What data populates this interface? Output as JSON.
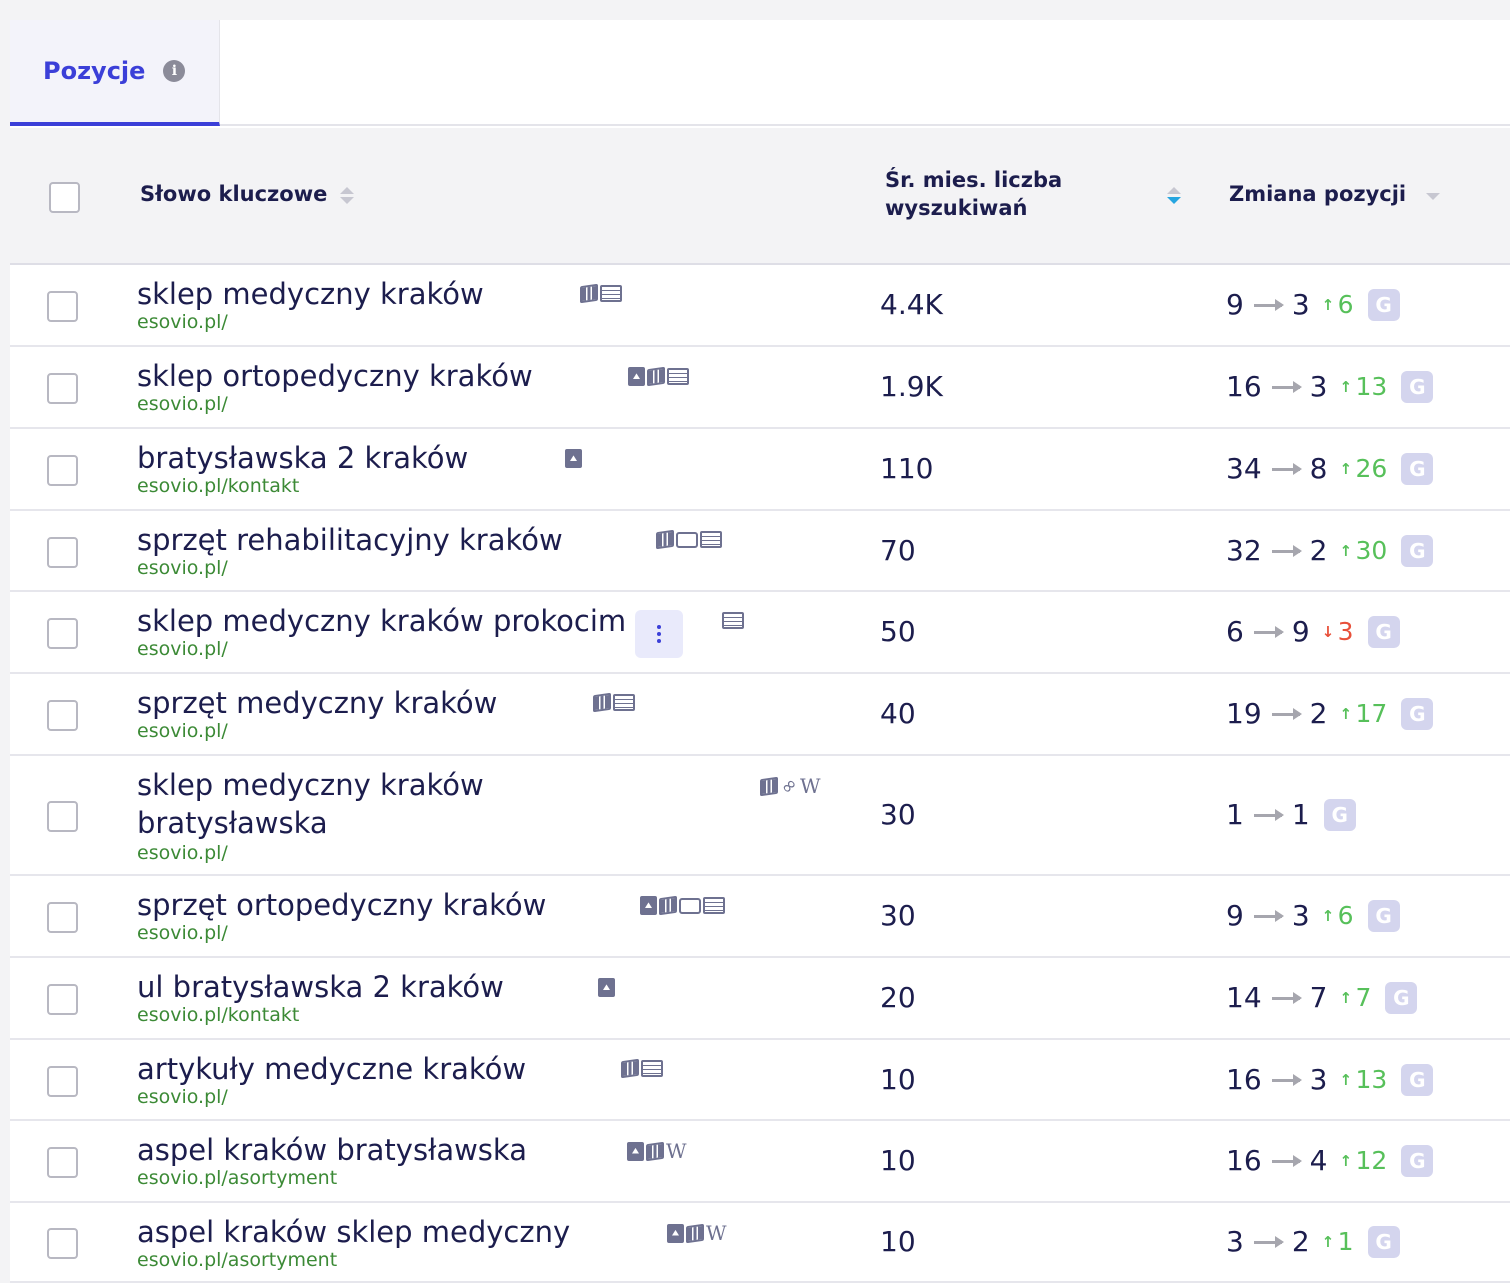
{
  "tabs": [
    {
      "label": "Pozycje",
      "info_icon": "info-icon",
      "active": true
    }
  ],
  "columns": {
    "keyword": "Słowo kluczowe",
    "volume_line1": "Śr. mies. liczba",
    "volume_line2": "wyszukiwań",
    "change": "Zmiana pozycji"
  },
  "colors": {
    "accent": "#3b3fd8",
    "url": "#3c8a36",
    "up": "#57c05a",
    "down": "#e8503a",
    "sort_active": "#26a5e0"
  },
  "rows": [
    {
      "keyword": "sklep medyczny kraków",
      "url": "esovio.pl/",
      "icons": [
        "map-icon",
        "book-icon"
      ],
      "volume": "4.4K",
      "from": "9",
      "to": "3",
      "dir": "up",
      "delta": "6",
      "badge": "G"
    },
    {
      "keyword": "sklep ortopedyczny kraków",
      "url": "esovio.pl/",
      "icons": [
        "image-icon",
        "map-icon",
        "book-icon"
      ],
      "volume": "1.9K",
      "from": "16",
      "to": "3",
      "dir": "up",
      "delta": "13",
      "badge": "G"
    },
    {
      "keyword": "bratysławska 2 kraków",
      "url": "esovio.pl/kontakt",
      "icons": [
        "image-icon"
      ],
      "volume": "110",
      "from": "34",
      "to": "8",
      "dir": "up",
      "delta": "26",
      "badge": "G"
    },
    {
      "keyword": "sprzęt rehabilitacyjny kraków",
      "url": "esovio.pl/",
      "icons": [
        "map-icon",
        "chat-icon",
        "book-icon"
      ],
      "volume": "70",
      "from": "32",
      "to": "2",
      "dir": "up",
      "delta": "30",
      "badge": "G"
    },
    {
      "keyword": "sklep medyczny kraków prokocim",
      "url": "esovio.pl/",
      "icons": [
        "book-icon"
      ],
      "volume": "50",
      "from": "6",
      "to": "9",
      "dir": "down",
      "delta": "3",
      "badge": "G",
      "kebab": true
    },
    {
      "keyword": "sprzęt medyczny kraków",
      "url": "esovio.pl/",
      "icons": [
        "map-icon",
        "book-icon"
      ],
      "volume": "40",
      "from": "19",
      "to": "2",
      "dir": "up",
      "delta": "17",
      "badge": "G"
    },
    {
      "keyword": "sklep medyczny kraków",
      "keyword2": "bratysławska",
      "url": "esovio.pl/",
      "icons": [
        "map-icon",
        "link-icon",
        "wikipedia-icon"
      ],
      "volume": "30",
      "from": "1",
      "to": "1",
      "dir": "none",
      "delta": "",
      "badge": "G"
    },
    {
      "keyword": "sprzęt ortopedyczny kraków",
      "url": "esovio.pl/",
      "icons": [
        "image-icon",
        "map-icon",
        "chat-icon",
        "book-icon"
      ],
      "volume": "30",
      "from": "9",
      "to": "3",
      "dir": "up",
      "delta": "6",
      "badge": "G"
    },
    {
      "keyword": "ul bratysławska 2 kraków",
      "url": "esovio.pl/kontakt",
      "icons": [
        "image-icon"
      ],
      "volume": "20",
      "from": "14",
      "to": "7",
      "dir": "up",
      "delta": "7",
      "badge": "G"
    },
    {
      "keyword": "artykuły medyczne kraków",
      "url": "esovio.pl/",
      "icons": [
        "map-icon",
        "book-icon"
      ],
      "volume": "10",
      "from": "16",
      "to": "3",
      "dir": "up",
      "delta": "13",
      "badge": "G"
    },
    {
      "keyword": "aspel kraków bratysławska",
      "url": "esovio.pl/asortyment",
      "icons": [
        "image-icon",
        "map-icon",
        "wikipedia-icon"
      ],
      "volume": "10",
      "from": "16",
      "to": "4",
      "dir": "up",
      "delta": "12",
      "badge": "G"
    },
    {
      "keyword": "aspel kraków sklep medyczny",
      "url": "esovio.pl/asortyment",
      "icons": [
        "image-icon",
        "map-icon",
        "wikipedia-icon"
      ],
      "volume": "10",
      "from": "3",
      "to": "2",
      "dir": "up",
      "delta": "1",
      "badge": "G"
    }
  ]
}
